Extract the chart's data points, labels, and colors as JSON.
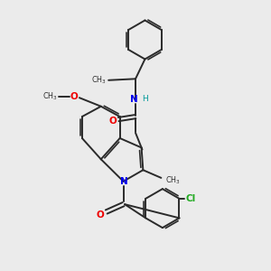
{
  "background_color": "#ebebeb",
  "bond_color": "#2a2a2a",
  "N_color": "#0000ee",
  "O_color": "#ee0000",
  "Cl_color": "#22aa22",
  "H_color": "#009999",
  "figsize": [
    3.0,
    3.0
  ],
  "dpi": 100,
  "xlim": [
    0,
    10
  ],
  "ylim": [
    0,
    10
  ]
}
